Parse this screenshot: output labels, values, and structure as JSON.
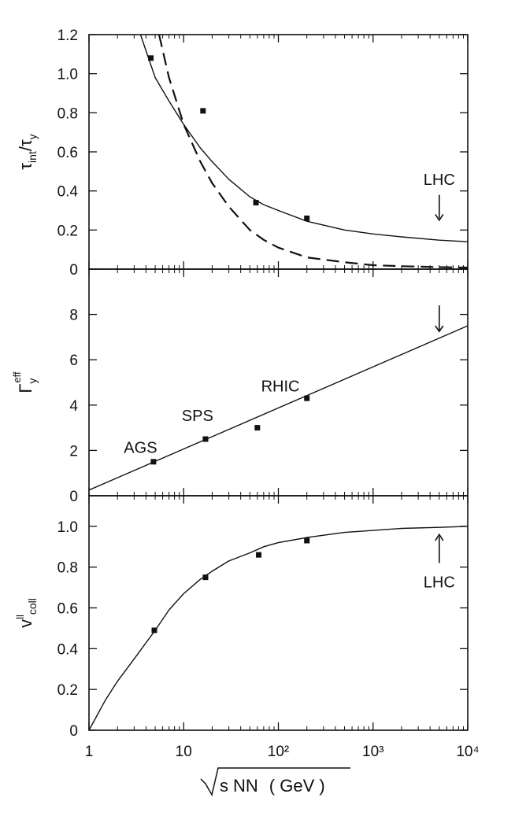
{
  "chart_data": [
    {
      "type": "scatter",
      "panel": "top",
      "x_scale": "log",
      "xlim": [
        1,
        10000
      ],
      "ylim": [
        0,
        1.2
      ],
      "ylabel": {
        "main": "τ",
        "sub1": "int",
        "sep": "/τ",
        "sub2": "y"
      },
      "yticks": [
        "0",
        "0.2",
        "0.4",
        "0.6",
        "0.8",
        "1.0",
        "1.2"
      ],
      "series": [
        {
          "style": "markers",
          "x": [
            4.5,
            16,
            58,
            200
          ],
          "y": [
            1.08,
            0.81,
            0.34,
            0.26
          ]
        },
        {
          "style": "solid",
          "x": [
            3.5,
            5,
            7,
            10,
            15,
            20,
            30,
            50,
            70,
            100,
            200,
            500,
            1000,
            2000,
            5000,
            10000
          ],
          "y": [
            1.2,
            0.98,
            0.86,
            0.74,
            0.62,
            0.55,
            0.46,
            0.37,
            0.33,
            0.3,
            0.245,
            0.2,
            0.18,
            0.165,
            0.148,
            0.14
          ]
        },
        {
          "style": "dashed",
          "x": [
            5.5,
            7,
            10,
            15,
            20,
            30,
            50,
            70,
            100,
            200,
            500,
            1000,
            2000,
            5000,
            10000
          ],
          "y": [
            1.2,
            0.98,
            0.74,
            0.55,
            0.44,
            0.32,
            0.2,
            0.15,
            0.11,
            0.06,
            0.035,
            0.02,
            0.015,
            0.01,
            0.008
          ]
        }
      ],
      "annotations": [
        {
          "text": "LHC",
          "x": 5000,
          "y": 0.43
        }
      ]
    },
    {
      "type": "scatter",
      "panel": "middle",
      "x_scale": "log",
      "xlim": [
        1,
        10000
      ],
      "ylim": [
        0,
        10
      ],
      "ylabel": {
        "main": "Γ",
        "sub": "y",
        "sup": "eff"
      },
      "yticks": [
        "0",
        "2",
        "4",
        "6",
        "8"
      ],
      "series": [
        {
          "style": "markers",
          "x": [
            4.8,
            17,
            60,
            200
          ],
          "y": [
            1.5,
            2.5,
            3.0,
            4.3
          ]
        },
        {
          "style": "solid",
          "x": [
            1,
            10000
          ],
          "y": [
            0.25,
            7.5
          ]
        }
      ],
      "annotations": [
        {
          "text": "AGS",
          "x": 3.5,
          "y": 1.9
        },
        {
          "text": "SPS",
          "x": 14,
          "y": 3.3
        },
        {
          "text": "RHIC",
          "x": 105,
          "y": 4.6
        }
      ]
    },
    {
      "type": "scatter",
      "panel": "bottom",
      "x_scale": "log",
      "xlim": [
        1,
        10000
      ],
      "ylim": [
        0,
        1.15
      ],
      "ylabel": {
        "main": "v",
        "sup": "ll",
        "sub": "coll"
      },
      "yticks": [
        "0",
        "0.2",
        "0.4",
        "0.6",
        "0.8",
        "1.0"
      ],
      "xticks": [
        "1",
        "10",
        "10²",
        "10³",
        "10⁴"
      ],
      "xlabel": {
        "sqrt": "s",
        "sub": "NN",
        "unit": "( GeV )"
      },
      "series": [
        {
          "style": "markers",
          "x": [
            4.9,
            17,
            62,
            200
          ],
          "y": [
            0.49,
            0.75,
            0.86,
            0.93
          ]
        },
        {
          "style": "solid",
          "x": [
            1,
            1.5,
            2,
            3,
            5,
            7,
            10,
            15,
            20,
            30,
            50,
            70,
            100,
            200,
            500,
            1000,
            2000,
            5000,
            10000
          ],
          "y": [
            0,
            0.15,
            0.24,
            0.35,
            0.49,
            0.59,
            0.67,
            0.74,
            0.78,
            0.83,
            0.87,
            0.9,
            0.92,
            0.945,
            0.97,
            0.98,
            0.99,
            0.995,
            1.0
          ]
        }
      ],
      "annotations": [
        {
          "text": "LHC",
          "x": 5000,
          "y": 0.7
        }
      ]
    }
  ]
}
